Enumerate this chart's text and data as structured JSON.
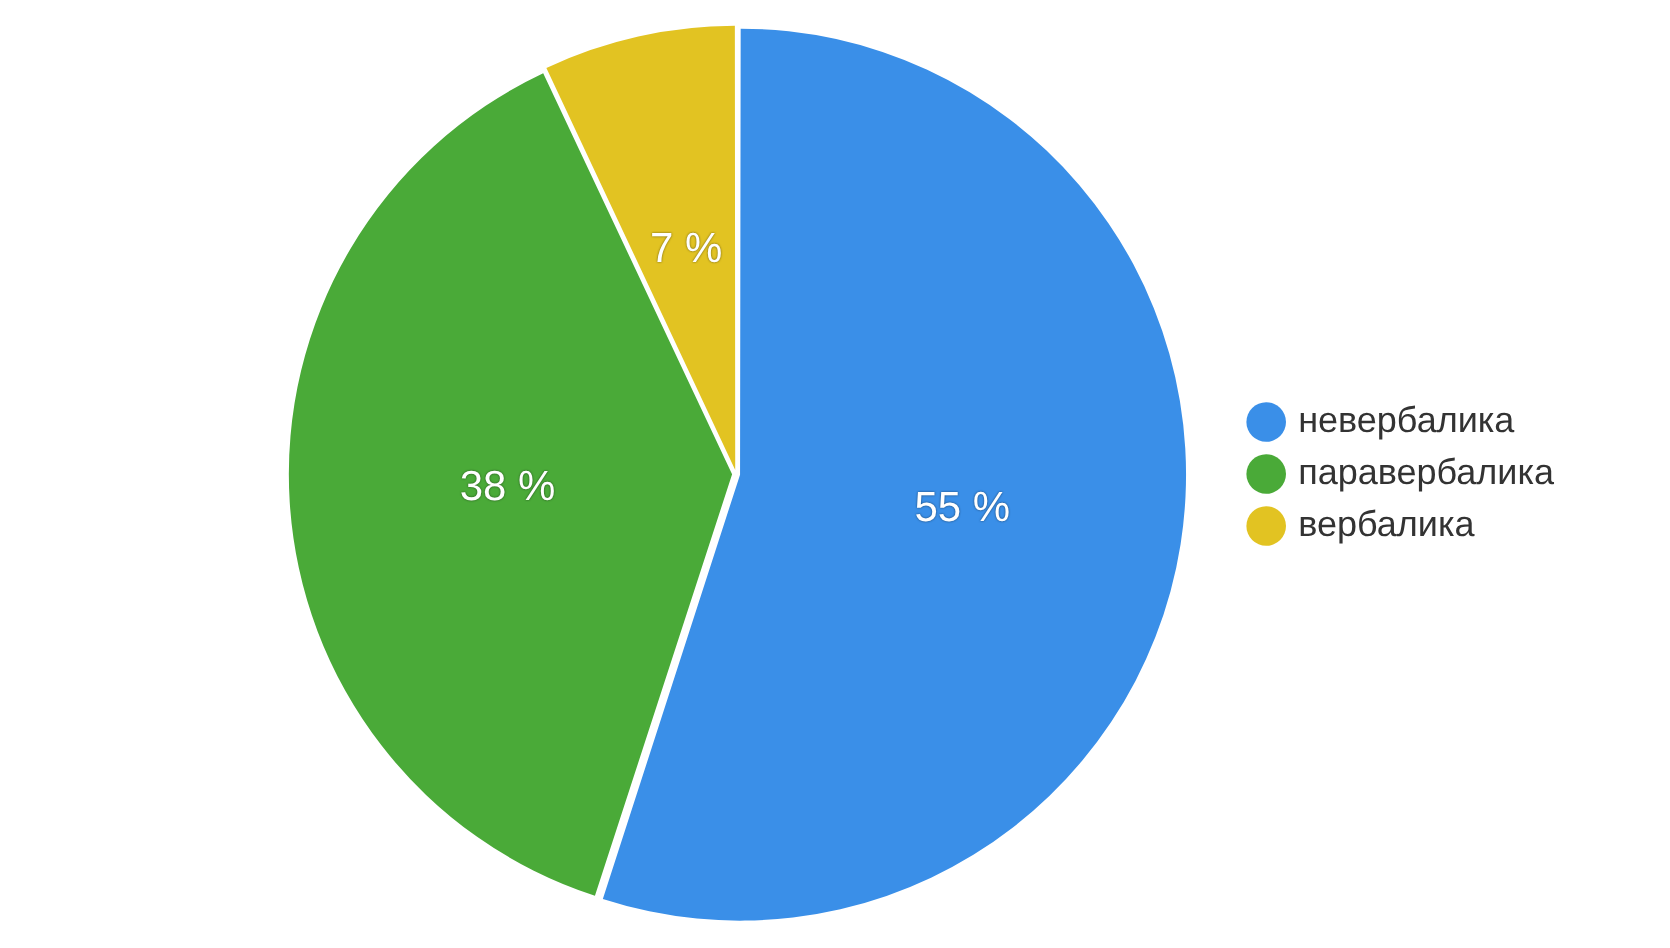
{
  "chart_data": {
    "type": "pie",
    "categories": [
      "невербалика",
      "паравербалика",
      "вербалика"
    ],
    "values": [
      55,
      38,
      7
    ],
    "colors": [
      "#3a8fe8",
      "#4aaa38",
      "#e2c322"
    ],
    "value_labels": [
      "55 %",
      "38 %",
      "7 %"
    ],
    "legend": "right"
  }
}
